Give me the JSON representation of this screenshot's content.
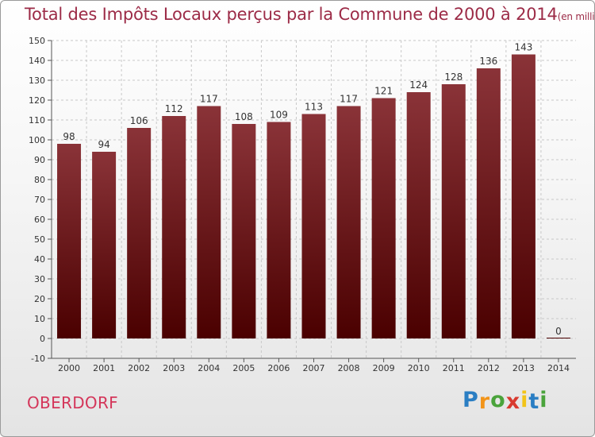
{
  "chart_data": {
    "type": "bar",
    "title": "Total des Impôts Locaux perçus par la Commune de 2000 à 2014",
    "unit_label": "(en milliers d'€)",
    "categories": [
      "2000",
      "2001",
      "2002",
      "2003",
      "2004",
      "2005",
      "2006",
      "2007",
      "2008",
      "2009",
      "2010",
      "2011",
      "2012",
      "2013",
      "2014"
    ],
    "values": [
      98,
      94,
      106,
      112,
      117,
      108,
      109,
      113,
      117,
      121,
      124,
      128,
      136,
      143,
      0
    ],
    "value_labels": [
      "98",
      "94",
      "106",
      "112",
      "117",
      "108",
      "109",
      "113",
      "117",
      "121",
      "124",
      "128",
      "136",
      "143",
      "0"
    ],
    "ylim": [
      -10,
      150
    ],
    "yticks": [
      -10,
      0,
      10,
      20,
      30,
      40,
      50,
      60,
      70,
      80,
      90,
      100,
      110,
      120,
      130,
      140,
      150
    ],
    "ytick_labels": [
      "-10",
      "0",
      "10",
      "20",
      "30",
      "40",
      "50",
      "60",
      "70",
      "80",
      "90",
      "100",
      "110",
      "120",
      "130",
      "140",
      "150"
    ],
    "grid": true,
    "xlabel": "",
    "ylabel": "",
    "colors": {
      "bar_top": "#8a3338",
      "bar_bottom": "#4a0000",
      "grid": "#c8c8c8",
      "axis": "#555555"
    }
  },
  "commune": "OBERDORF",
  "logo": {
    "text": "Proxiti",
    "letters": [
      "P",
      "r",
      "o",
      "x",
      "i",
      "t",
      "i"
    ],
    "colors": [
      "#2a7ec3",
      "#f29419",
      "#4aa33b",
      "#d83a2f",
      "#f2c419",
      "#2a7ec3",
      "#4aa33b"
    ]
  }
}
